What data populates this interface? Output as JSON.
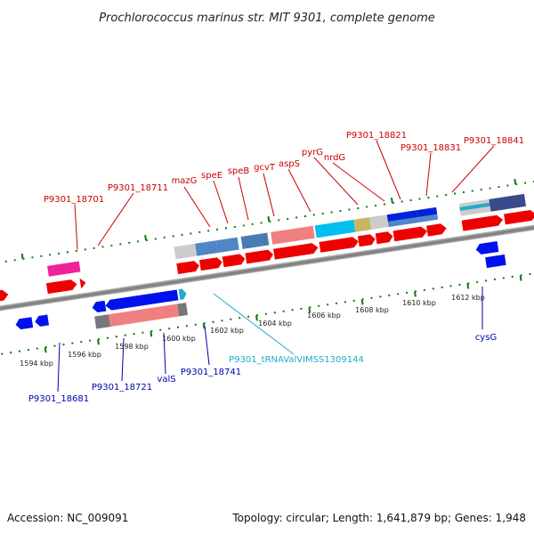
{
  "title": "Prochlorococcus marinus str. MIT 9301, complete genome",
  "footer": {
    "accession": "Accession: NC_009091",
    "stats": "Topology: circular; Length: 1,641,879 bp; Genes: 1,948"
  },
  "colors": {
    "top_label": "#cc0000",
    "bottom_label": "#0000aa",
    "trna_label": "#22aacc",
    "tick": "#117711",
    "backbone": "#888888"
  },
  "kbp_labels": [
    "1594 kbp",
    "1596 kbp",
    "1598 kbp",
    "1600 kbp",
    "1602 kbp",
    "1604 kbp",
    "1606 kbp",
    "1608 kbp",
    "1610 kbp",
    "1612 kbp"
  ],
  "top_labels": [
    {
      "name": "p9301-18701-label",
      "text": "P9301_18701"
    },
    {
      "name": "p9301-18711-label",
      "text": "P9301_18711"
    },
    {
      "name": "mazg-label",
      "text": "mazG"
    },
    {
      "name": "spee-label",
      "text": "speE"
    },
    {
      "name": "speb-label",
      "text": "speB"
    },
    {
      "name": "gcvt-label",
      "text": "gcvT"
    },
    {
      "name": "asps-label",
      "text": "aspS"
    },
    {
      "name": "pyrg-label",
      "text": "pyrG"
    },
    {
      "name": "nrdg-label",
      "text": "nrdG"
    },
    {
      "name": "p9301-18821-label",
      "text": "P9301_18821"
    },
    {
      "name": "p9301-18831-label",
      "text": "P9301_18831"
    },
    {
      "name": "p9301-18841-label",
      "text": "P9301_18841"
    }
  ],
  "bottom_labels": [
    {
      "name": "p9301-18681-label",
      "text": "P9301_18681"
    },
    {
      "name": "p9301-18721-label",
      "text": "P9301_18721"
    },
    {
      "name": "vals-label",
      "text": "valS"
    },
    {
      "name": "p9301-18741-label",
      "text": "P9301_18741"
    },
    {
      "name": "trna-val-label",
      "text": "P9301_tRNAValVIMSS1309144"
    },
    {
      "name": "cysg-label",
      "text": "cysG"
    }
  ]
}
